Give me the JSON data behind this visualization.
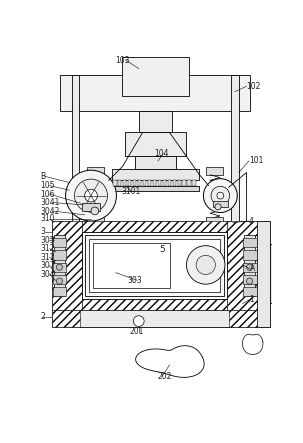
{
  "background_color": "#ffffff",
  "fig_width": 3.03,
  "fig_height": 4.43,
  "dpi": 100,
  "label_fs": 5.5,
  "label_color": "#222222"
}
